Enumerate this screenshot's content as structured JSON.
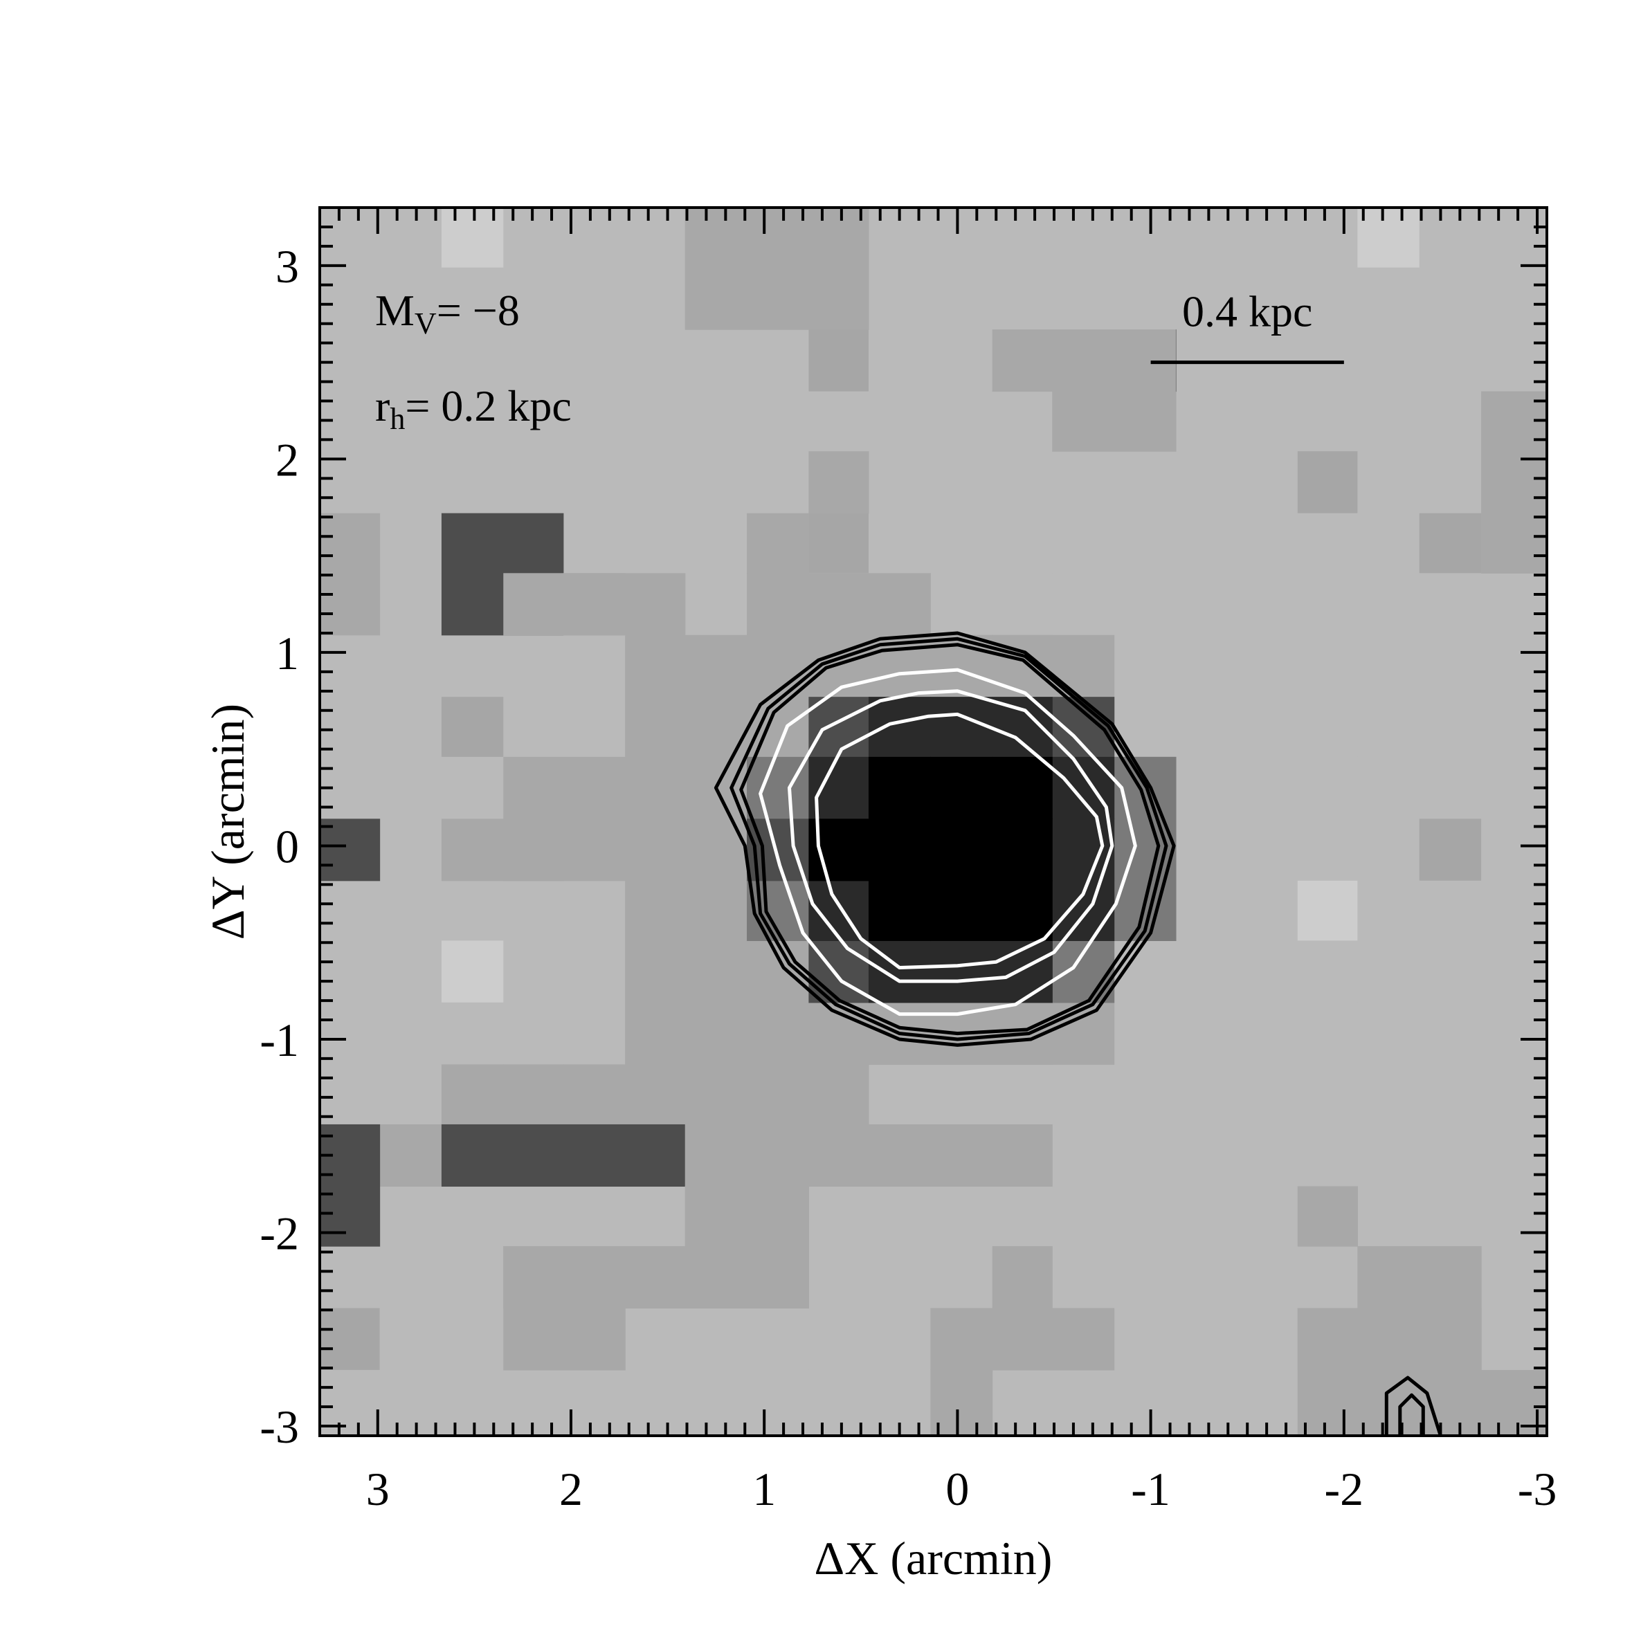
{
  "chart_data": {
    "type": "heatmap",
    "xlabel": "ΔX (arcmin)",
    "ylabel": "ΔY (arcmin)",
    "xlim": [
      3.3,
      -3.05
    ],
    "ylim": [
      -3.05,
      3.3
    ],
    "xticks": [
      3,
      2,
      1,
      0,
      -1,
      -2,
      -3
    ],
    "xtick_labels": [
      "3",
      "2",
      "1",
      "0",
      "-1",
      "-2",
      "-3"
    ],
    "yticks": [
      -3,
      -2,
      -1,
      0,
      1,
      2,
      3
    ],
    "ytick_labels": [
      "-3",
      "-2",
      "-1",
      "0",
      "1",
      "2",
      "3"
    ],
    "grid": false,
    "pixel_grid": {
      "x_edges": [
        3.3,
        2.99,
        2.67,
        2.35,
        2.04,
        1.72,
        1.41,
        1.09,
        0.77,
        0.46,
        0.14,
        -0.18,
        -0.49,
        -0.81,
        -1.13,
        -1.44,
        -1.76,
        -2.07,
        -2.39,
        -2.71,
        -3.05
      ],
      "y_edges": [
        3.3,
        2.99,
        2.67,
        2.35,
        2.04,
        1.72,
        1.41,
        1.09,
        0.77,
        0.46,
        0.14,
        -0.18,
        -0.49,
        -0.81,
        -1.13,
        -1.44,
        -1.76,
        -2.07,
        -2.39,
        -2.71,
        -3.05
      ],
      "rows": [
        "44C44444444444444C44",
        "44444444B44444444444",
        "44444444B44444444444",
        "44444444444444444444",
        "4444444444444444B444",
        "44444444B444444444B4",
        "44444444444444444444",
        "44444444444444444444",
        "44B4444B444444444444",
        "44444444444444444444",
        "44444444B444444444B4",
        "4444444B4B444444C444",
        "44C44444444444444444",
        "44444444444444444444",
        "44444444444444444444",
        "44444444444444444444",
        "44444444444444444444",
        "444444444444444444B4",
        "B4444444444444444444",
        "44444444444444444444"
      ],
      "overlays": [
        [
          6,
          1,
          9,
          2,
          3
        ],
        [
          6,
          0,
          9,
          1,
          3
        ],
        [
          7,
          0,
          8,
          1,
          3
        ],
        [
          11,
          2,
          14,
          3,
          3
        ],
        [
          12,
          3,
          14,
          4,
          3
        ],
        [
          8,
          4,
          9,
          5,
          3
        ],
        [
          14,
          2,
          14,
          3,
          2
        ],
        [
          0,
          5,
          1,
          7,
          3
        ],
        [
          2,
          5,
          4,
          7,
          2
        ],
        [
          0,
          10,
          1,
          11,
          2
        ],
        [
          3,
          6,
          5,
          7,
          3
        ],
        [
          4,
          6,
          6,
          7,
          3
        ],
        [
          7,
          5,
          8,
          6,
          3
        ],
        [
          7,
          6,
          10,
          7,
          3
        ],
        [
          19,
          3,
          20,
          6,
          3
        ],
        [
          5,
          7,
          13,
          14,
          3
        ],
        [
          0,
          15,
          2,
          16,
          3
        ],
        [
          0,
          15,
          1,
          17,
          2
        ],
        [
          3,
          9,
          6,
          11,
          3
        ],
        [
          2,
          10,
          4,
          11,
          3
        ],
        [
          2,
          14,
          6,
          15,
          3
        ],
        [
          2,
          15,
          7,
          16,
          2
        ],
        [
          6,
          14,
          9,
          16,
          3
        ],
        [
          9,
          15,
          12,
          16,
          3
        ],
        [
          3,
          17,
          5,
          19,
          3
        ],
        [
          3,
          17,
          6,
          18,
          3
        ],
        [
          6,
          16,
          8,
          18,
          3
        ],
        [
          11,
          17,
          12,
          18,
          3
        ],
        [
          11,
          18,
          13,
          19,
          3
        ],
        [
          10,
          18,
          11,
          20,
          3
        ],
        [
          16,
          16,
          17,
          17,
          3
        ],
        [
          16,
          18,
          17,
          19,
          3
        ],
        [
          19,
          19,
          20,
          20,
          3
        ],
        [
          17,
          17,
          19,
          20,
          3
        ],
        [
          16,
          18,
          19,
          20,
          3
        ]
      ],
      "gray_levels": {
        "0": "#000000",
        "1": "#2a2a2a",
        "2": "#4d4d4d",
        "3": "#a8a8a8",
        "4": "#bababa",
        "5": "#8c8c8c",
        "6": "#7a7a7a",
        "B": "#a6a6a6",
        "C": "#cdcdcd"
      }
    },
    "core": {
      "center": [
        0.0,
        0.0
      ],
      "shells": [
        {
          "radius_x": 1.18,
          "radius_y": 1.02,
          "level": "3"
        },
        {
          "radius_x": 1.05,
          "radius_y": 0.92,
          "level": "6"
        },
        {
          "radius_x": 0.95,
          "radius_y": 0.86,
          "level": "2"
        },
        {
          "radius_x": 0.8,
          "radius_y": 0.74,
          "level": "1"
        },
        {
          "radius_x": 0.62,
          "radius_y": 0.52,
          "level": "0"
        }
      ]
    },
    "contours": [
      {
        "color": "#000000",
        "points": [
          [
            0.0,
            1.1
          ],
          [
            -0.35,
            1.0
          ],
          [
            -0.8,
            0.63
          ],
          [
            -1.0,
            0.3
          ],
          [
            -1.12,
            0.0
          ],
          [
            -1.0,
            -0.45
          ],
          [
            -0.72,
            -0.85
          ],
          [
            -0.38,
            -1.0
          ],
          [
            0.0,
            -1.03
          ],
          [
            0.3,
            -1.0
          ],
          [
            0.65,
            -0.85
          ],
          [
            0.9,
            -0.63
          ],
          [
            1.05,
            -0.35
          ],
          [
            1.1,
            0.0
          ],
          [
            1.25,
            0.3
          ],
          [
            1.02,
            0.73
          ],
          [
            0.72,
            0.96
          ],
          [
            0.4,
            1.07
          ]
        ]
      },
      {
        "color": "#000000",
        "points": [
          [
            0.0,
            1.07
          ],
          [
            -0.35,
            0.98
          ],
          [
            -0.78,
            0.62
          ],
          [
            -0.98,
            0.3
          ],
          [
            -1.08,
            0.0
          ],
          [
            -0.97,
            -0.44
          ],
          [
            -0.7,
            -0.82
          ],
          [
            -0.37,
            -0.97
          ],
          [
            0.0,
            -1.0
          ],
          [
            0.3,
            -0.97
          ],
          [
            0.63,
            -0.82
          ],
          [
            0.87,
            -0.61
          ],
          [
            1.02,
            -0.35
          ],
          [
            1.05,
            0.0
          ],
          [
            1.17,
            0.3
          ],
          [
            0.98,
            0.71
          ],
          [
            0.7,
            0.94
          ],
          [
            0.4,
            1.04
          ]
        ]
      },
      {
        "color": "#000000",
        "points": [
          [
            0.0,
            1.04
          ],
          [
            -0.34,
            0.96
          ],
          [
            -0.76,
            0.6
          ],
          [
            -0.95,
            0.29
          ],
          [
            -1.04,
            0.0
          ],
          [
            -0.94,
            -0.42
          ],
          [
            -0.68,
            -0.8
          ],
          [
            -0.36,
            -0.95
          ],
          [
            0.0,
            -0.97
          ],
          [
            0.3,
            -0.94
          ],
          [
            0.61,
            -0.8
          ],
          [
            0.84,
            -0.6
          ],
          [
            0.99,
            -0.34
          ],
          [
            1.01,
            0.0
          ],
          [
            1.12,
            0.29
          ],
          [
            0.95,
            0.69
          ],
          [
            0.68,
            0.92
          ],
          [
            0.39,
            1.01
          ]
        ]
      },
      {
        "color": "#ffffff",
        "points": [
          [
            0.0,
            0.91
          ],
          [
            -0.35,
            0.79
          ],
          [
            -0.6,
            0.57
          ],
          [
            -0.85,
            0.3
          ],
          [
            -0.92,
            0.0
          ],
          [
            -0.82,
            -0.3
          ],
          [
            -0.6,
            -0.63
          ],
          [
            -0.3,
            -0.82
          ],
          [
            0.0,
            -0.87
          ],
          [
            0.3,
            -0.87
          ],
          [
            0.6,
            -0.7
          ],
          [
            0.8,
            -0.45
          ],
          [
            0.92,
            -0.1
          ],
          [
            1.02,
            0.27
          ],
          [
            0.88,
            0.62
          ],
          [
            0.6,
            0.82
          ],
          [
            0.3,
            0.89
          ]
        ]
      },
      {
        "color": "#ffffff",
        "points": [
          [
            0.0,
            0.8
          ],
          [
            -0.35,
            0.7
          ],
          [
            -0.6,
            0.45
          ],
          [
            -0.77,
            0.2
          ],
          [
            -0.8,
            0.0
          ],
          [
            -0.7,
            -0.3
          ],
          [
            -0.5,
            -0.55
          ],
          [
            -0.25,
            -0.68
          ],
          [
            0.0,
            -0.7
          ],
          [
            0.3,
            -0.7
          ],
          [
            0.57,
            -0.53
          ],
          [
            0.75,
            -0.3
          ],
          [
            0.85,
            0.0
          ],
          [
            0.87,
            0.3
          ],
          [
            0.7,
            0.6
          ],
          [
            0.4,
            0.75
          ],
          [
            0.2,
            0.79
          ]
        ]
      },
      {
        "color": "#ffffff",
        "points": [
          [
            0.0,
            0.68
          ],
          [
            -0.3,
            0.56
          ],
          [
            -0.55,
            0.35
          ],
          [
            -0.72,
            0.15
          ],
          [
            -0.75,
            0.0
          ],
          [
            -0.65,
            -0.25
          ],
          [
            -0.45,
            -0.48
          ],
          [
            -0.2,
            -0.6
          ],
          [
            0.0,
            -0.62
          ],
          [
            0.3,
            -0.63
          ],
          [
            0.5,
            -0.48
          ],
          [
            0.65,
            -0.25
          ],
          [
            0.72,
            0.0
          ],
          [
            0.73,
            0.25
          ],
          [
            0.6,
            0.5
          ],
          [
            0.35,
            0.63
          ],
          [
            0.15,
            0.67
          ]
        ]
      },
      {
        "color": "#000000",
        "points": [
          [
            -2.22,
            -3.05
          ],
          [
            -2.22,
            -3.0
          ],
          [
            -2.22,
            -2.83
          ],
          [
            -2.33,
            -2.75
          ],
          [
            -2.43,
            -2.83
          ],
          [
            -2.5,
            -3.05
          ]
        ]
      },
      {
        "color": "#000000",
        "points": [
          [
            -2.29,
            -3.05
          ],
          [
            -2.29,
            -2.9
          ],
          [
            -2.35,
            -2.84
          ],
          [
            -2.41,
            -2.9
          ],
          [
            -2.41,
            -3.05
          ]
        ]
      }
    ],
    "annotations": {
      "mv_main": "M",
      "mv_sub": "V",
      "mv_rest": "= −8",
      "rh_main": "r",
      "rh_sub": "h",
      "rh_rest": "= 0.2 kpc",
      "scale_label": "0.4 kpc",
      "scale_bar": [
        -1.0,
        -2.0,
        2.5
      ]
    }
  }
}
